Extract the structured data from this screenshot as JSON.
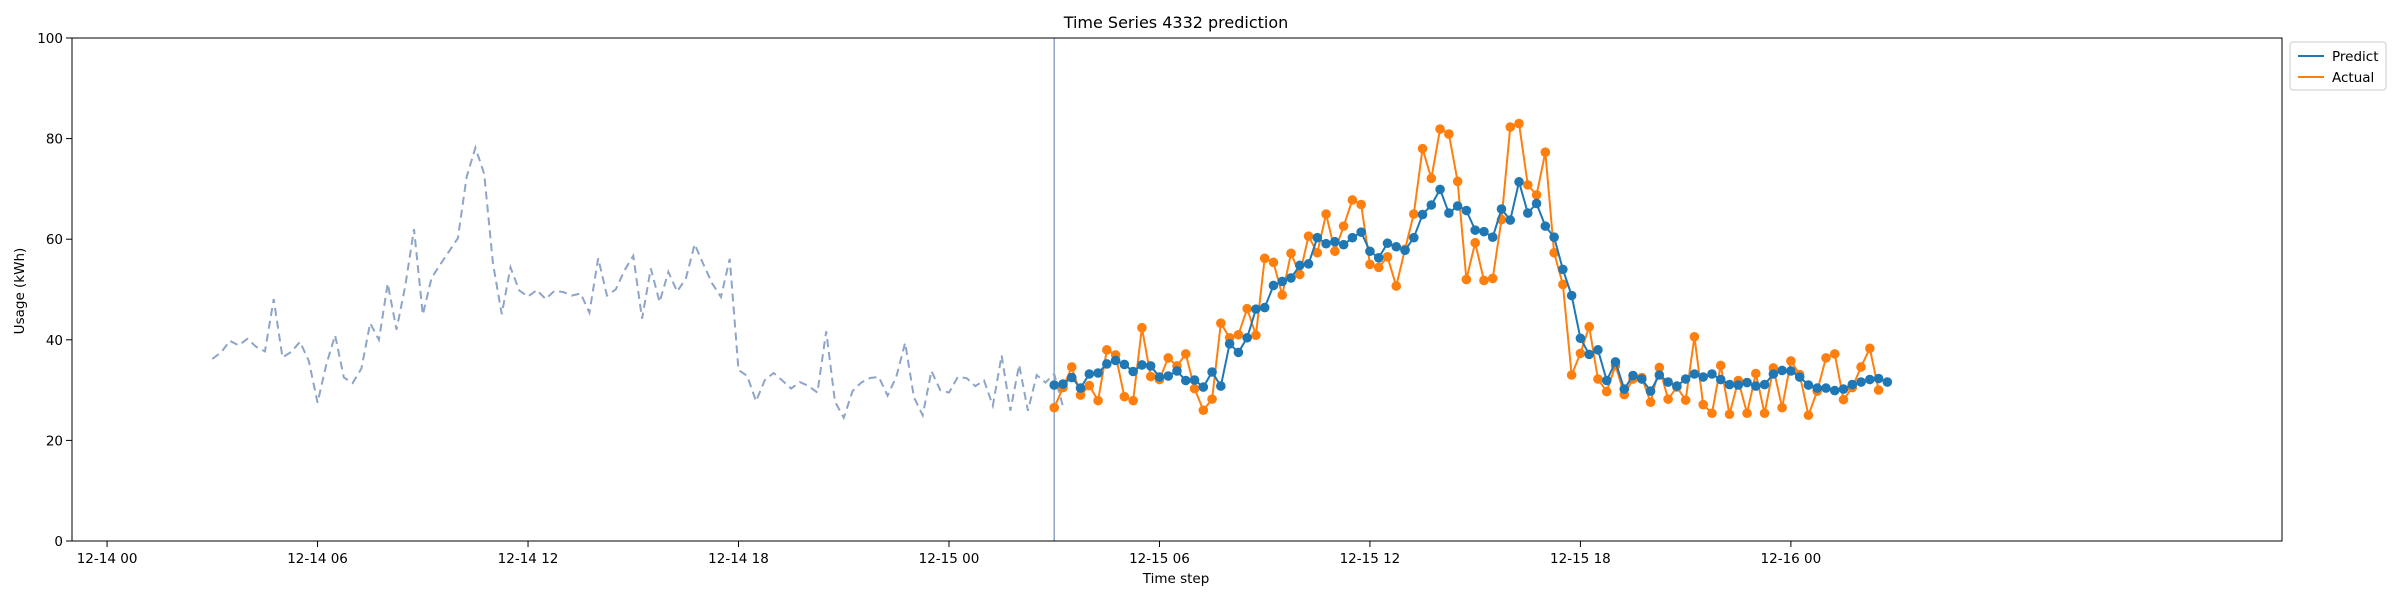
{
  "chart_data": {
    "type": "line",
    "title": "Time Series 4332 prediction",
    "xlabel": "Time step",
    "ylabel": "Usage (kWh)",
    "ylim": [
      0,
      100
    ],
    "y_ticks": [
      0,
      20,
      40,
      60,
      80,
      100
    ],
    "xlim": [
      "2021-12-13 23:00",
      "2021-12-16 14:00"
    ],
    "x_ticks": [
      {
        "value": "2021-12-14 00:00",
        "label": "12-14 00"
      },
      {
        "value": "2021-12-14 06:00",
        "label": "12-14 06"
      },
      {
        "value": "2021-12-14 12:00",
        "label": "12-14 12"
      },
      {
        "value": "2021-12-14 18:00",
        "label": "12-14 18"
      },
      {
        "value": "2021-12-15 00:00",
        "label": "12-15 00"
      },
      {
        "value": "2021-12-15 06:00",
        "label": "12-15 06"
      },
      {
        "value": "2021-12-15 12:00",
        "label": "12-15 12"
      },
      {
        "value": "2021-12-15 18:00",
        "label": "12-15 18"
      },
      {
        "value": "2021-12-16 00:00",
        "label": "12-16 00"
      }
    ],
    "grid": false,
    "legend_position": "top-right-outside",
    "split_line": {
      "x": "2021-12-15 03:00",
      "color": "#8ea4c8"
    },
    "history": {
      "color": "#8ea4c8",
      "style": "dashed",
      "start": "2021-12-14 03:00",
      "step_minutes": 15,
      "values": [
        36.2,
        37.5,
        39.8,
        38.9,
        40.2,
        38.6,
        37.7,
        48.1,
        36.5,
        37.6,
        39.6,
        35.8,
        27.5,
        35.1,
        40.9,
        32.5,
        31.4,
        34.3,
        43.3,
        40.0,
        51.2,
        42.0,
        50.7,
        62.0,
        45.0,
        52.3,
        55.0,
        57.6,
        60.2,
        72.4,
        78.2,
        73.0,
        55.2,
        45.1,
        54.4,
        49.8,
        48.6,
        49.9,
        48.1,
        49.7,
        49.5,
        48.8,
        49.2,
        45.4,
        56.2,
        48.8,
        50.0,
        53.8,
        56.7,
        44.2,
        54.2,
        47.5,
        53.5,
        49.6,
        52.2,
        59.0,
        55.0,
        51.2,
        48.5,
        56.1,
        34.0,
        32.8,
        27.8,
        32.0,
        33.4,
        31.9,
        30.3,
        31.6,
        30.8,
        29.5,
        41.7,
        27.7,
        24.5,
        29.8,
        31.5,
        32.4,
        32.6,
        28.9,
        32.7,
        39.4,
        28.6,
        25.0,
        33.8,
        30.0,
        29.5,
        32.6,
        32.4,
        30.8,
        31.9,
        26.9,
        36.9,
        25.9,
        35.0,
        25.9,
        33.0,
        31.5,
        33.2,
        26.7
      ]
    },
    "forecast_x": {
      "start": "2021-12-15 03:00",
      "step_minutes": 15
    },
    "series": [
      {
        "name": "Predict",
        "color": "#1f77b4",
        "values": [
          31.0,
          31.2,
          32.5,
          30.4,
          33.2,
          33.4,
          35.2,
          35.9,
          35.1,
          33.7,
          35.0,
          34.8,
          32.6,
          32.8,
          33.8,
          31.9,
          32.0,
          30.6,
          33.6,
          30.8,
          39.2,
          37.5,
          40.4,
          46.1,
          46.4,
          50.8,
          51.6,
          52.3,
          54.8,
          55.1,
          60.3,
          59.1,
          59.5,
          58.9,
          60.3,
          61.4,
          57.6,
          56.3,
          59.2,
          58.5,
          57.8,
          60.3,
          64.9,
          66.8,
          69.9,
          65.2,
          66.6,
          65.7,
          61.8,
          61.5,
          60.4,
          66.0,
          63.8,
          71.4,
          65.2,
          67.1,
          62.6,
          60.4,
          54.0,
          48.8,
          40.3,
          37.1,
          38.0,
          31.9,
          35.6,
          30.2,
          32.9,
          32.2,
          29.8,
          33.0,
          31.6,
          30.8,
          32.2,
          33.2,
          32.6,
          33.2,
          32.1,
          31.1,
          31.0,
          31.5,
          30.8,
          31.1,
          33.2,
          33.9,
          33.8,
          32.6,
          31.0,
          30.4,
          30.4,
          29.9,
          30.2,
          31.1,
          31.6,
          32.1,
          32.3,
          31.6
        ]
      },
      {
        "name": "Actual",
        "color": "#ff7f0e",
        "values": [
          26.5,
          30.5,
          34.6,
          29.0,
          30.9,
          27.9,
          38.0,
          37.0,
          28.7,
          27.9,
          42.4,
          32.7,
          32.1,
          36.4,
          34.8,
          37.2,
          30.3,
          26.0,
          28.2,
          43.3,
          40.4,
          41.0,
          46.2,
          40.9,
          56.2,
          55.4,
          48.9,
          57.2,
          53.0,
          60.6,
          57.3,
          65.0,
          57.6,
          62.6,
          67.8,
          66.9,
          55.0,
          54.4,
          56.5,
          50.7,
          58.0,
          65.0,
          78.0,
          72.1,
          81.9,
          80.9,
          71.5,
          52.0,
          59.3,
          51.8,
          52.2,
          63.9,
          82.3,
          83.0,
          70.8,
          68.8,
          77.3,
          57.3,
          51.0,
          33.0,
          37.3,
          42.6,
          32.2,
          29.7,
          34.9,
          29.1,
          32.2,
          32.5,
          27.6,
          34.5,
          28.2,
          30.6,
          28.0,
          40.6,
          27.1,
          25.4,
          34.9,
          25.2,
          31.9,
          25.4,
          33.3,
          25.4,
          34.4,
          26.5,
          35.8,
          33.1,
          25.0,
          29.8,
          36.4,
          37.2,
          28.1,
          30.5,
          34.6,
          38.3,
          30.0
        ]
      }
    ]
  }
}
